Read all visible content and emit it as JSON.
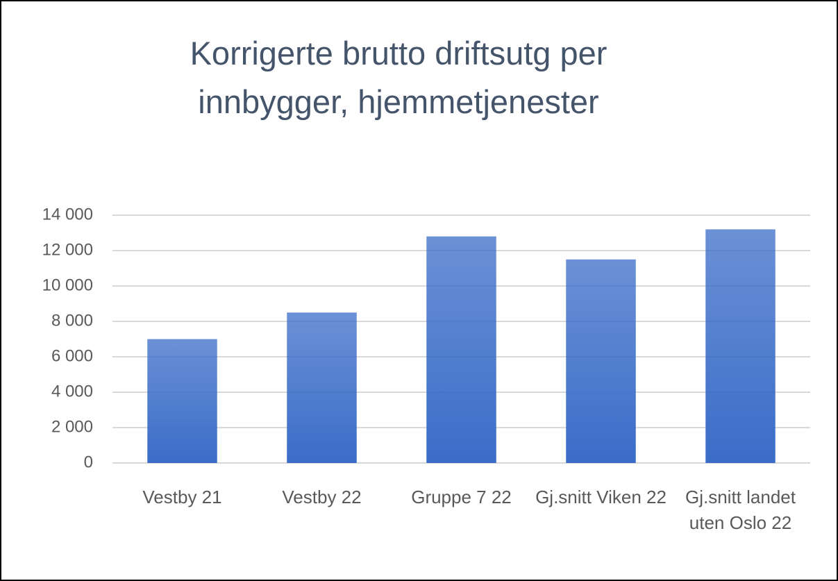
{
  "chart_data": {
    "type": "bar",
    "title": "Korrigerte brutto driftsutg per innbygger, hjemmetjenester",
    "categories": [
      "Vestby 21",
      "Vestby 22",
      "Gruppe 7 22",
      "Gj.snitt Viken 22",
      "Gj.snitt landet uten Oslo 22"
    ],
    "values": [
      7000,
      8500,
      12800,
      11500,
      13200
    ],
    "color": "#3a6cc8",
    "ylim": [
      0,
      14000
    ],
    "yticks": [
      0,
      {
        "value": 2000,
        "label": "2 000"
      },
      {
        "value": 4000,
        "label": "4 000"
      },
      {
        "value": 6000,
        "label": "6 000"
      },
      {
        "value": 8000,
        "label": "8 000"
      },
      {
        "value": 10000,
        "label": "10 000"
      },
      {
        "value": 12000,
        "label": "12 000"
      },
      {
        "value": 14000,
        "label": "14 000"
      }
    ],
    "grid": true
  }
}
